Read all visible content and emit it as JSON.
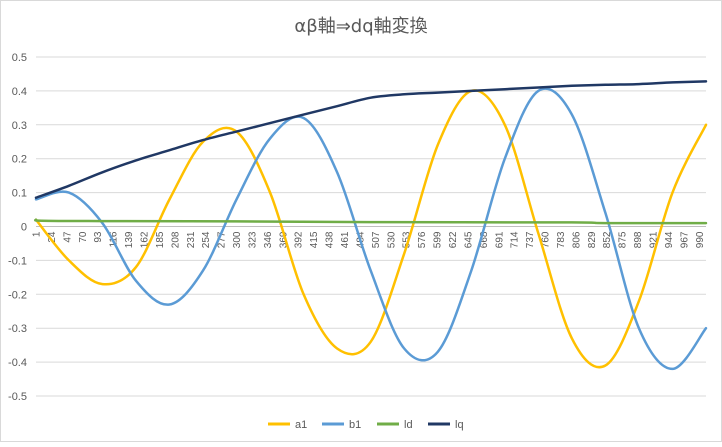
{
  "chart_data": {
    "type": "line",
    "title": "αβ軸⇒dq軸変換",
    "xlabel": "",
    "ylabel": "",
    "ylim": [
      -0.5,
      0.5
    ],
    "yticks": [
      0.5,
      0.4,
      0.3,
      0.2,
      0.1,
      0,
      -0.1,
      -0.2,
      -0.3,
      -0.4,
      -0.5
    ],
    "ytick_labels": [
      "0.5",
      "0.4",
      "0.3",
      "0.2",
      "0.1",
      "0",
      "-0.1",
      "-0.2",
      "-0.3",
      "-0.4",
      "-0.5"
    ],
    "x_tick_labels": [
      "1",
      "24",
      "47",
      "70",
      "93",
      "116",
      "139",
      "162",
      "185",
      "208",
      "231",
      "254",
      "277",
      "300",
      "323",
      "346",
      "369",
      "392",
      "415",
      "438",
      "461",
      "484",
      "507",
      "530",
      "553",
      "576",
      "599",
      "622",
      "645",
      "668",
      "691",
      "714",
      "737",
      "760",
      "783",
      "806",
      "829",
      "852",
      "875",
      "898",
      "921",
      "944",
      "967",
      "990"
    ],
    "xlim": [
      1,
      1000
    ],
    "grid": "horizontal",
    "legend": "bottom",
    "series": [
      {
        "name": "a1",
        "color": "#ffc000",
        "x": [
          1,
          50,
          100,
          150,
          200,
          250,
          300,
          350,
          400,
          450,
          500,
          550,
          600,
          650,
          700,
          750,
          800,
          850,
          900,
          950,
          1000
        ],
        "y": [
          0.02,
          -0.1,
          -0.17,
          -0.12,
          0.08,
          0.25,
          0.28,
          0.1,
          -0.2,
          -0.36,
          -0.34,
          -0.08,
          0.24,
          0.4,
          0.3,
          -0.02,
          -0.33,
          -0.41,
          -0.22,
          0.1,
          0.3
        ]
      },
      {
        "name": "b1",
        "color": "#5b9bd5",
        "x": [
          1,
          50,
          100,
          150,
          200,
          250,
          300,
          350,
          400,
          450,
          500,
          550,
          600,
          650,
          700,
          750,
          800,
          850,
          900,
          950,
          1000
        ],
        "y": [
          0.08,
          0.1,
          0.01,
          -0.16,
          -0.23,
          -0.13,
          0.08,
          0.26,
          0.32,
          0.16,
          -0.13,
          -0.36,
          -0.37,
          -0.13,
          0.2,
          0.4,
          0.33,
          0.04,
          -0.3,
          -0.42,
          -0.3
        ]
      },
      {
        "name": "ld",
        "color": "#70ad47",
        "x": [
          1,
          10,
          100,
          300,
          500,
          800,
          850,
          1000
        ],
        "y": [
          0.02,
          0.017,
          0.016,
          0.015,
          0.013,
          0.012,
          0.01,
          0.01
        ]
      },
      {
        "name": "lq",
        "color": "#203864",
        "x": [
          1,
          50,
          100,
          150,
          200,
          250,
          300,
          350,
          400,
          450,
          500,
          550,
          600,
          650,
          700,
          750,
          800,
          850,
          900,
          950,
          1000
        ],
        "y": [
          0.085,
          0.12,
          0.16,
          0.195,
          0.225,
          0.255,
          0.28,
          0.305,
          0.33,
          0.355,
          0.38,
          0.39,
          0.395,
          0.4,
          0.405,
          0.41,
          0.415,
          0.418,
          0.42,
          0.425,
          0.428
        ]
      }
    ]
  }
}
